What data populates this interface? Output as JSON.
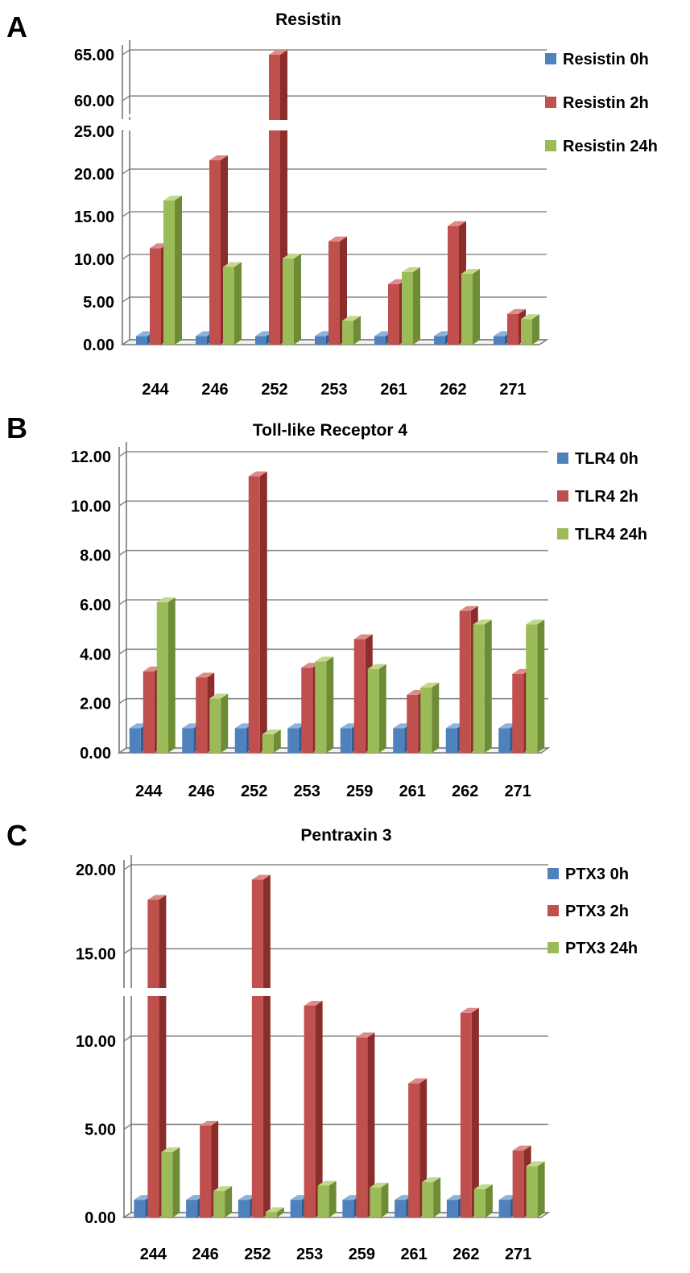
{
  "figure": {
    "panel_labels": [
      "A",
      "B",
      "C"
    ]
  },
  "colors": {
    "0h": {
      "front": "#4f81bd",
      "side": "#2f5c91",
      "top": "#8db2dd"
    },
    "2h": {
      "front": "#c0504d",
      "side": "#8b2e2b",
      "top": "#de8a87"
    },
    "24h": {
      "front": "#9bbb59",
      "side": "#6e8c35",
      "top": "#c2d98c"
    }
  },
  "chart_data": [
    {
      "type": "bar",
      "title": "Resistin",
      "categories": [
        "244",
        "246",
        "252",
        "253",
        "261",
        "262",
        "271"
      ],
      "series": [
        {
          "name": "Resistin 0h",
          "key": "0h",
          "values": [
            1,
            1,
            1,
            1,
            1,
            1,
            1
          ]
        },
        {
          "name": "Resistin 2h",
          "key": "2h",
          "values": [
            11.3,
            21.6,
            65.3,
            12.1,
            7.1,
            13.9,
            3.6
          ]
        },
        {
          "name": "Resistin 24h",
          "key": "24h",
          "values": [
            16.9,
            9.1,
            10.1,
            2.8,
            8.5,
            8.3,
            3.0
          ]
        }
      ],
      "axis_break": true,
      "ylim_lower": [
        0,
        25
      ],
      "ylim_upper": [
        58,
        65
      ],
      "yticks_lower": [
        "0.00",
        "5.00",
        "10.00",
        "15.00",
        "20.00",
        "25.00"
      ],
      "yticks_upper": [
        "60.00",
        "65.00"
      ],
      "legend": "right"
    },
    {
      "type": "bar",
      "title": "Toll-like Receptor 4",
      "categories": [
        "244",
        "246",
        "252",
        "253",
        "259",
        "261",
        "262",
        "271"
      ],
      "series": [
        {
          "name": "TLR4 0h",
          "key": "0h",
          "values": [
            1,
            1,
            1,
            1,
            1,
            1,
            1,
            1
          ]
        },
        {
          "name": "TLR4 2h",
          "key": "2h",
          "values": [
            3.3,
            3.05,
            11.2,
            3.45,
            4.6,
            2.35,
            5.75,
            3.2
          ]
        },
        {
          "name": "TLR4 24h",
          "key": "24h",
          "values": [
            6.1,
            2.2,
            0.75,
            3.7,
            3.4,
            2.65,
            5.2,
            5.2
          ]
        }
      ],
      "axis_break": false,
      "ylim": [
        0,
        12
      ],
      "yticks": [
        "0.00",
        "2.00",
        "4.00",
        "6.00",
        "8.00",
        "10.00",
        "12.00"
      ],
      "legend": "right"
    },
    {
      "type": "bar",
      "title": "Pentraxin 3",
      "categories": [
        "244",
        "246",
        "252",
        "253",
        "259",
        "261",
        "262",
        "271"
      ],
      "series": [
        {
          "name": "PTX3 0h",
          "key": "0h",
          "values": [
            1,
            1,
            1,
            1,
            1,
            1,
            1,
            1
          ]
        },
        {
          "name": "PTX3 2h",
          "key": "2h",
          "values": [
            18.2,
            5.2,
            19.4,
            12.0,
            10.2,
            7.6,
            11.6,
            3.8
          ]
        },
        {
          "name": "PTX3 24h",
          "key": "24h",
          "values": [
            3.7,
            1.5,
            0.3,
            1.8,
            1.7,
            2.0,
            1.6,
            2.9
          ]
        }
      ],
      "axis_break": true,
      "ylim_lower": [
        0,
        12.5
      ],
      "ylim_upper": [
        13,
        20
      ],
      "yticks_lower": [
        "0.00",
        "5.00",
        "10.00"
      ],
      "yticks_upper": [
        "15.00",
        "20.00"
      ],
      "legend": "right"
    }
  ]
}
